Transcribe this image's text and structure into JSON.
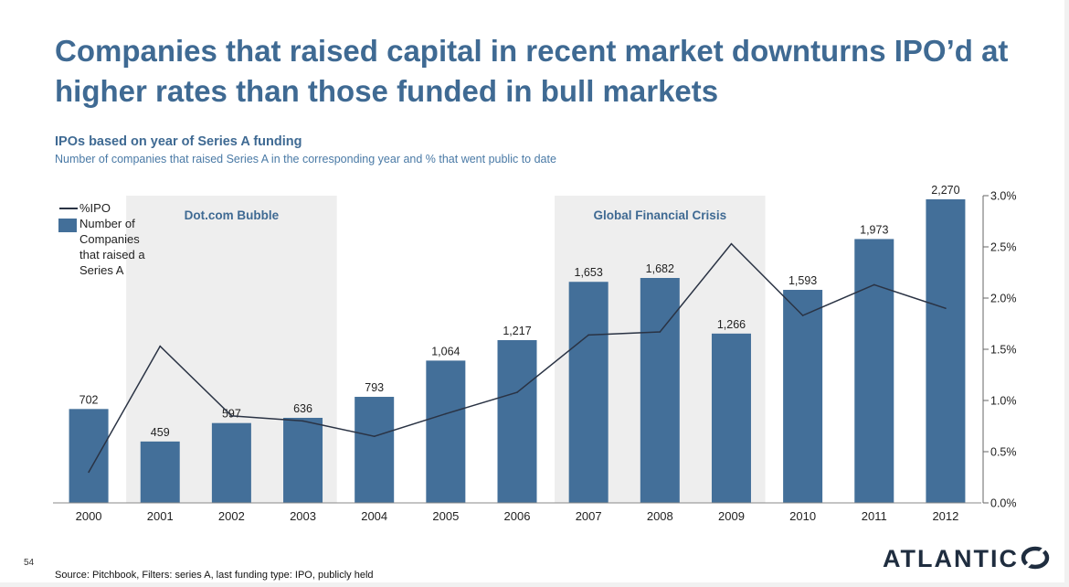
{
  "title": "Companies that raised capital in recent market downturns IPO’d at higher rates than those funded in bull markets",
  "subtitle": "IPOs based on year of Series A funding",
  "caption": "Number of companies that raised Series A in the corresponding year and % that went public to date",
  "legend": {
    "line_label": "%IPO",
    "bar_label": "Number of Companies that raised a Series A"
  },
  "page_number": "54",
  "source": "Source: Pitchbook, Filters: series A, last funding type: IPO, publicly held",
  "logo": "ATLANTIC",
  "colors": {
    "bar": "#436f99",
    "line": "#2a3344",
    "shade": "#eeeeee",
    "title": "#3f6a93"
  },
  "chart_data": {
    "type": "bar",
    "categories": [
      "2000",
      "2001",
      "2002",
      "2003",
      "2004",
      "2005",
      "2006",
      "2007",
      "2008",
      "2009",
      "2010",
      "2011",
      "2012"
    ],
    "series": [
      {
        "name": "Number of Companies that raised a Series A",
        "type": "bar",
        "values": [
          702,
          459,
          597,
          636,
          793,
          1064,
          1217,
          1653,
          1682,
          1266,
          1593,
          1973,
          2270
        ],
        "labels": [
          "702",
          "459",
          "597",
          "636",
          "793",
          "1,064",
          "1,217",
          "1,653",
          "1,682",
          "1,266",
          "1,593",
          "1,973",
          "2,270"
        ]
      },
      {
        "name": "%IPO",
        "type": "line",
        "axis": "right",
        "values": [
          0.3,
          1.53,
          0.85,
          0.8,
          0.65,
          0.87,
          1.08,
          1.64,
          1.67,
          2.53,
          1.83,
          2.13,
          1.9
        ]
      }
    ],
    "right_axis": {
      "range": [
        0,
        3.0
      ],
      "ticks": [
        0,
        0.5,
        1.0,
        1.5,
        2.0,
        2.5,
        3.0
      ],
      "tick_labels": [
        "0.0%",
        "0.5%",
        "1.0%",
        "1.5%",
        "2.0%",
        "2.5%",
        "3.0%"
      ]
    },
    "left_axis": {
      "range": [
        0,
        2270
      ],
      "visible": false
    },
    "shaded_regions": [
      {
        "label": "Dot.com Bubble",
        "from": "2001",
        "to": "2003"
      },
      {
        "label": "Global Financial Crisis",
        "from": "2007",
        "to": "2009"
      }
    ]
  }
}
